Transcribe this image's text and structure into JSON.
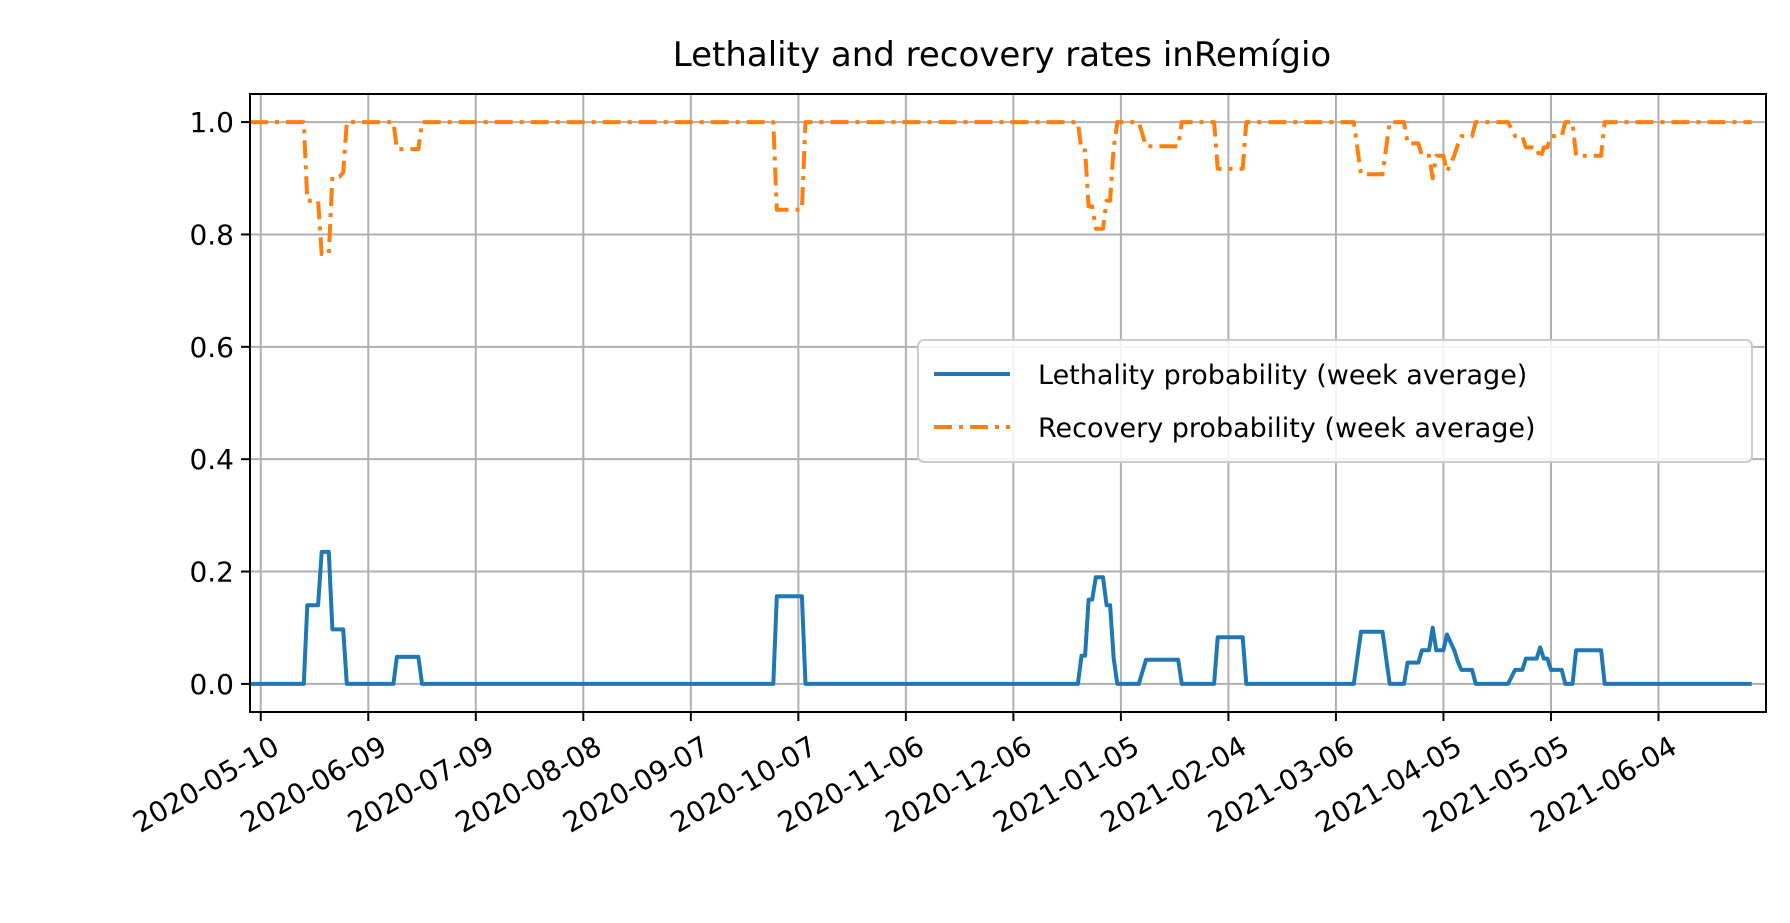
{
  "chart_data": {
    "type": "line",
    "title": "Lethality and recovery rates inRemígio",
    "xlabel": "",
    "ylabel": "",
    "x_type": "date",
    "xlim": [
      "2020-05-07",
      "2021-07-04"
    ],
    "ylim": [
      -0.05,
      1.05
    ],
    "x_ticks": [
      "2020-05-10",
      "2020-06-09",
      "2020-07-09",
      "2020-08-08",
      "2020-09-07",
      "2020-10-07",
      "2020-11-06",
      "2020-12-06",
      "2021-01-05",
      "2021-02-04",
      "2021-03-06",
      "2021-04-05",
      "2021-05-05",
      "2021-06-04"
    ],
    "y_ticks": [
      "0.0",
      "0.2",
      "0.4",
      "0.6",
      "0.8",
      "1.0"
    ],
    "grid": true,
    "legend_position": "center-right",
    "series": [
      {
        "name": "Lethality probability (week average)",
        "color": "#1f77b4",
        "line_style": "solid",
        "points": [
          [
            "2020-05-07",
            0
          ],
          [
            "2020-05-22",
            0
          ],
          [
            "2020-05-23",
            0.14
          ],
          [
            "2020-05-26",
            0.14
          ],
          [
            "2020-05-27",
            0.235
          ],
          [
            "2020-05-29",
            0.235
          ],
          [
            "2020-05-30",
            0.097
          ],
          [
            "2020-06-02",
            0.097
          ],
          [
            "2020-06-03",
            0
          ],
          [
            "2020-06-16",
            0
          ],
          [
            "2020-06-17",
            0.048
          ],
          [
            "2020-06-23",
            0.048
          ],
          [
            "2020-06-24",
            0
          ],
          [
            "2020-09-30",
            0
          ],
          [
            "2020-10-01",
            0.156
          ],
          [
            "2020-10-08",
            0.156
          ],
          [
            "2020-10-09",
            0
          ],
          [
            "2020-12-24",
            0
          ],
          [
            "2020-12-25",
            0.05
          ],
          [
            "2020-12-26",
            0.05
          ],
          [
            "2020-12-27",
            0.15
          ],
          [
            "2020-12-28",
            0.15
          ],
          [
            "2020-12-29",
            0.19
          ],
          [
            "2020-12-31",
            0.19
          ],
          [
            "2021-01-01",
            0.14
          ],
          [
            "2021-01-02",
            0.14
          ],
          [
            "2021-01-03",
            0.045
          ],
          [
            "2021-01-04",
            0
          ],
          [
            "2021-01-10",
            0
          ],
          [
            "2021-01-12",
            0.043
          ],
          [
            "2021-01-21",
            0.043
          ],
          [
            "2021-01-22",
            0
          ],
          [
            "2021-01-31",
            0
          ],
          [
            "2021-02-01",
            0.083
          ],
          [
            "2021-02-08",
            0.083
          ],
          [
            "2021-02-09",
            0
          ],
          [
            "2021-03-11",
            0
          ],
          [
            "2021-03-13",
            0.093
          ],
          [
            "2021-03-19",
            0.093
          ],
          [
            "2021-03-21",
            0
          ],
          [
            "2021-03-25",
            0
          ],
          [
            "2021-03-26",
            0.038
          ],
          [
            "2021-03-29",
            0.038
          ],
          [
            "2021-03-30",
            0.06
          ],
          [
            "2021-04-01",
            0.06
          ],
          [
            "2021-04-02",
            0.1
          ],
          [
            "2021-04-03",
            0.06
          ],
          [
            "2021-04-05",
            0.06
          ],
          [
            "2021-04-06",
            0.088
          ],
          [
            "2021-04-08",
            0.06
          ],
          [
            "2021-04-09",
            0.04
          ],
          [
            "2021-04-10",
            0.025
          ],
          [
            "2021-04-13",
            0.025
          ],
          [
            "2021-04-14",
            0
          ],
          [
            "2021-04-23",
            0
          ],
          [
            "2021-04-25",
            0.025
          ],
          [
            "2021-04-27",
            0.025
          ],
          [
            "2021-04-28",
            0.045
          ],
          [
            "2021-05-01",
            0.045
          ],
          [
            "2021-05-02",
            0.065
          ],
          [
            "2021-05-03",
            0.045
          ],
          [
            "2021-05-04",
            0.045
          ],
          [
            "2021-05-05",
            0.025
          ],
          [
            "2021-05-08",
            0.025
          ],
          [
            "2021-05-09",
            0
          ],
          [
            "2021-05-11",
            0
          ],
          [
            "2021-05-12",
            0.06
          ],
          [
            "2021-05-19",
            0.06
          ],
          [
            "2021-05-20",
            0
          ],
          [
            "2021-06-30",
            0
          ]
        ]
      },
      {
        "name": "Recovery probability (week average)",
        "color": "#ff7f0e",
        "line_style": "dashdot",
        "points": [
          [
            "2020-05-07",
            1
          ],
          [
            "2020-05-22",
            1
          ],
          [
            "2020-05-23",
            0.86
          ],
          [
            "2020-05-26",
            0.86
          ],
          [
            "2020-05-27",
            0.765
          ],
          [
            "2020-05-29",
            0.765
          ],
          [
            "2020-05-30",
            0.903
          ],
          [
            "2020-06-01",
            0.903
          ],
          [
            "2020-06-02",
            0.91
          ],
          [
            "2020-06-03",
            1
          ],
          [
            "2020-06-16",
            1
          ],
          [
            "2020-06-17",
            0.952
          ],
          [
            "2020-06-23",
            0.952
          ],
          [
            "2020-06-24",
            1
          ],
          [
            "2020-09-30",
            1
          ],
          [
            "2020-10-01",
            0.844
          ],
          [
            "2020-10-08",
            0.844
          ],
          [
            "2020-10-09",
            1
          ],
          [
            "2020-12-24",
            1
          ],
          [
            "2020-12-25",
            0.95
          ],
          [
            "2020-12-26",
            0.95
          ],
          [
            "2020-12-27",
            0.85
          ],
          [
            "2020-12-28",
            0.85
          ],
          [
            "2020-12-29",
            0.81
          ],
          [
            "2020-12-31",
            0.81
          ],
          [
            "2021-01-01",
            0.86
          ],
          [
            "2021-01-02",
            0.86
          ],
          [
            "2021-01-03",
            0.955
          ],
          [
            "2021-01-04",
            1
          ],
          [
            "2021-01-10",
            1
          ],
          [
            "2021-01-12",
            0.957
          ],
          [
            "2021-01-21",
            0.957
          ],
          [
            "2021-01-22",
            1
          ],
          [
            "2021-01-31",
            1
          ],
          [
            "2021-02-01",
            0.917
          ],
          [
            "2021-02-08",
            0.917
          ],
          [
            "2021-02-09",
            1
          ],
          [
            "2021-03-11",
            1
          ],
          [
            "2021-03-13",
            0.907
          ],
          [
            "2021-03-19",
            0.907
          ],
          [
            "2021-03-21",
            1
          ],
          [
            "2021-03-25",
            1
          ],
          [
            "2021-03-26",
            0.962
          ],
          [
            "2021-03-29",
            0.962
          ],
          [
            "2021-03-30",
            0.94
          ],
          [
            "2021-04-01",
            0.94
          ],
          [
            "2021-04-02",
            0.9
          ],
          [
            "2021-04-03",
            0.94
          ],
          [
            "2021-04-05",
            0.94
          ],
          [
            "2021-04-06",
            0.912
          ],
          [
            "2021-04-08",
            0.94
          ],
          [
            "2021-04-09",
            0.96
          ],
          [
            "2021-04-10",
            0.975
          ],
          [
            "2021-04-13",
            0.975
          ],
          [
            "2021-04-14",
            1
          ],
          [
            "2021-04-23",
            1
          ],
          [
            "2021-04-25",
            0.975
          ],
          [
            "2021-04-27",
            0.975
          ],
          [
            "2021-04-28",
            0.955
          ],
          [
            "2021-05-01",
            0.955
          ],
          [
            "2021-05-02",
            0.935
          ],
          [
            "2021-05-03",
            0.955
          ],
          [
            "2021-05-04",
            0.955
          ],
          [
            "2021-05-05",
            0.975
          ],
          [
            "2021-05-08",
            0.975
          ],
          [
            "2021-05-09",
            1
          ],
          [
            "2021-05-11",
            1
          ],
          [
            "2021-05-12",
            0.94
          ],
          [
            "2021-05-19",
            0.94
          ],
          [
            "2021-05-20",
            1
          ],
          [
            "2021-06-30",
            1
          ]
        ]
      }
    ]
  }
}
